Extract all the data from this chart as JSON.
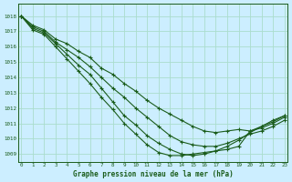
{
  "title": "Graphe pression niveau de la mer (hPa)",
  "bg_color": "#cceeff",
  "grid_color": "#aaddcc",
  "line_color": "#1a5c1a",
  "ylim": [
    1008.5,
    1018.8
  ],
  "xlim": [
    -0.3,
    23.3
  ],
  "yticks": [
    1009,
    1010,
    1011,
    1012,
    1013,
    1014,
    1015,
    1016,
    1017,
    1018
  ],
  "xticks": [
    0,
    1,
    2,
    3,
    4,
    5,
    6,
    7,
    8,
    9,
    10,
    11,
    12,
    13,
    14,
    15,
    16,
    17,
    18,
    19,
    20,
    21,
    22,
    23
  ],
  "series": [
    [
      1018.0,
      1017.4,
      1017.1,
      1016.5,
      1016.2,
      1015.7,
      1015.3,
      1014.6,
      1014.2,
      1013.6,
      1013.1,
      1012.5,
      1012.0,
      1011.6,
      1011.2,
      1010.8,
      1010.5,
      1010.4,
      1010.5,
      1010.6,
      1010.5,
      1010.7,
      1011.0,
      1011.4
    ],
    [
      1018.0,
      1017.3,
      1017.0,
      1016.3,
      1015.8,
      1015.3,
      1014.7,
      1014.0,
      1013.3,
      1012.7,
      1012.0,
      1011.4,
      1010.8,
      1010.2,
      1009.8,
      1009.6,
      1009.5,
      1009.5,
      1009.7,
      1010.0,
      1010.3,
      1010.5,
      1010.8,
      1011.2
    ],
    [
      1018.0,
      1017.2,
      1016.9,
      1016.2,
      1015.5,
      1014.8,
      1014.2,
      1013.3,
      1012.4,
      1011.5,
      1010.9,
      1010.2,
      1009.7,
      1009.3,
      1009.0,
      1008.9,
      1009.0,
      1009.2,
      1009.5,
      1009.9,
      1010.4,
      1010.8,
      1011.2,
      1011.5
    ],
    [
      1018.0,
      1017.1,
      1016.8,
      1016.0,
      1015.2,
      1014.4,
      1013.6,
      1012.7,
      1011.9,
      1011.0,
      1010.3,
      1009.6,
      1009.1,
      1008.9,
      1008.9,
      1009.0,
      1009.1,
      1009.2,
      1009.3,
      1009.5,
      1010.5,
      1010.8,
      1011.1,
      1011.5
    ]
  ]
}
